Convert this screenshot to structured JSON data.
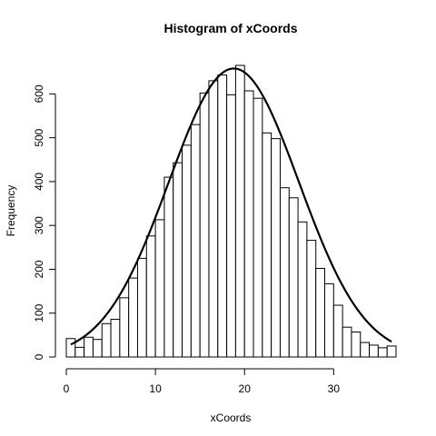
{
  "chart_data": {
    "type": "bar",
    "title": "Histogram of xCoords",
    "xlabel": "xCoords",
    "ylabel": "Frequency",
    "bin_width": 1,
    "bins_start": 0,
    "values": [
      42,
      22,
      45,
      40,
      76,
      86,
      135,
      180,
      225,
      276,
      313,
      410,
      443,
      483,
      530,
      602,
      630,
      643,
      598,
      665,
      607,
      590,
      511,
      498,
      386,
      363,
      308,
      266,
      202,
      167,
      118,
      68,
      57,
      33,
      27,
      21,
      25
    ],
    "xlim": [
      0,
      37
    ],
    "ylim": [
      0,
      665
    ],
    "x_ticks": [
      0,
      10,
      20,
      30
    ],
    "y_ticks": [
      0,
      100,
      200,
      300,
      400,
      500,
      600
    ],
    "overlay_curve": {
      "type": "normal-density",
      "mean": 18.8,
      "sd": 7.3,
      "peak": 658
    }
  }
}
